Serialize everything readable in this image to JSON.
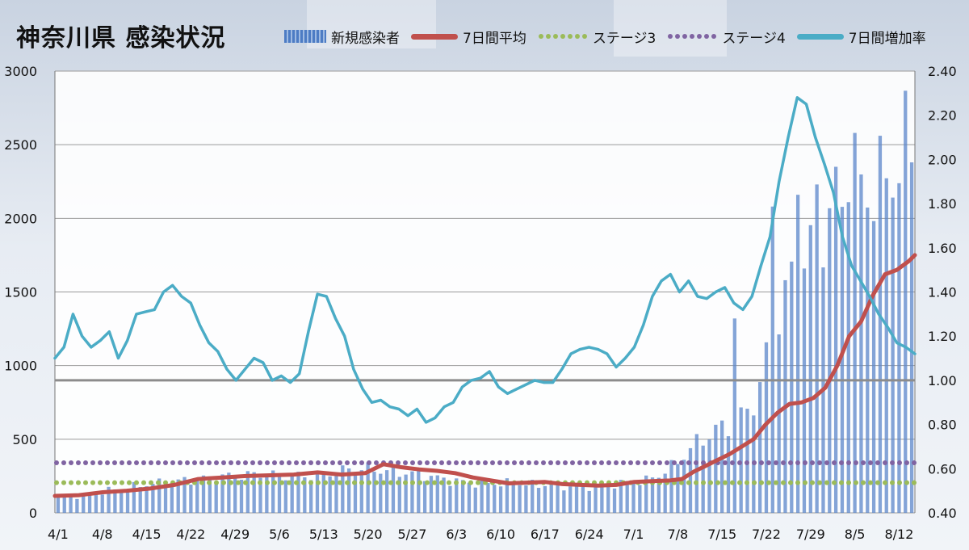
{
  "title": "神奈川県 感染状況",
  "legend": {
    "new_cases": "新規感染者",
    "avg7": "7日間平均",
    "stage3": "ステージ3",
    "stage4": "ステージ4",
    "growth7": "7日間増加率"
  },
  "colors": {
    "bars": "#5b86c9",
    "avg7": "#c0504d",
    "stage3": "#9bbb59",
    "stage4": "#8064a2",
    "growth7": "#4bacc6",
    "baseline": "#8c8c8c"
  },
  "chart_data": {
    "type": "bar",
    "title": "神奈川県 感染状況",
    "xlabel": "",
    "ylabel": "",
    "ylim": [
      0,
      3000
    ],
    "y2lim": [
      0.4,
      2.4
    ],
    "yticks": [
      "0",
      "500",
      "1000",
      "1500",
      "2000",
      "2500",
      "3000"
    ],
    "y2ticks": [
      "0.40",
      "0.60",
      "0.80",
      "1.00",
      "1.20",
      "1.40",
      "1.60",
      "1.80",
      "2.00",
      "2.20",
      "2.40"
    ],
    "xtick_labels": [
      "4/1",
      "4/8",
      "4/15",
      "4/22",
      "4/29",
      "5/6",
      "5/13",
      "5/20",
      "5/27",
      "6/3",
      "6/10",
      "6/17",
      "6/24",
      "7/1",
      "7/8",
      "7/15",
      "7/22",
      "7/29",
      "8/5",
      "8/12"
    ],
    "grid": true,
    "legend_position": "top",
    "series": [
      {
        "name": "新規感染者",
        "type": "bar",
        "axis": "left",
        "anchors": [
          [
            0,
            100
          ],
          [
            3,
            110
          ],
          [
            6,
            120
          ],
          [
            9,
            140
          ],
          [
            12,
            160
          ],
          [
            15,
            170
          ],
          [
            18,
            190
          ],
          [
            21,
            200
          ],
          [
            24,
            210
          ],
          [
            27,
            220
          ],
          [
            30,
            230
          ],
          [
            33,
            240
          ],
          [
            36,
            250
          ],
          [
            39,
            255
          ],
          [
            42,
            260
          ],
          [
            45,
            260
          ],
          [
            48,
            250
          ],
          [
            51,
            250
          ],
          [
            54,
            250
          ],
          [
            57,
            260
          ],
          [
            60,
            280
          ],
          [
            63,
            300
          ],
          [
            66,
            300
          ],
          [
            69,
            290
          ],
          [
            72,
            280
          ],
          [
            75,
            270
          ],
          [
            78,
            260
          ],
          [
            81,
            240
          ],
          [
            84,
            220
          ],
          [
            87,
            210
          ],
          [
            90,
            200
          ],
          [
            93,
            200
          ],
          [
            96,
            200
          ],
          [
            99,
            200
          ],
          [
            102,
            190
          ],
          [
            105,
            190
          ],
          [
            108,
            180
          ],
          [
            111,
            180
          ],
          [
            114,
            180
          ],
          [
            117,
            190
          ],
          [
            120,
            200
          ],
          [
            123,
            210
          ],
          [
            126,
            220
          ],
          [
            129,
            260
          ],
          [
            132,
            320
          ],
          [
            135,
            420
          ],
          [
            138,
            500
          ],
          [
            141,
            560
          ],
          [
            144,
            600
          ],
          [
            147,
            660
          ],
          [
            150,
            800
          ],
          [
            153,
            1200
          ],
          [
            156,
            1480
          ],
          [
            159,
            1700
          ],
          [
            162,
            1800
          ],
          [
            165,
            2000
          ],
          [
            168,
            2100
          ],
          [
            171,
            2150
          ],
          [
            174,
            2200
          ],
          [
            177,
            2250
          ],
          [
            180,
            2350
          ],
          [
            183,
            2550
          ]
        ],
        "spikes": [
          [
            107,
            1320
          ],
          [
            113,
            2080
          ],
          [
            117,
            2160
          ],
          [
            120,
            2230
          ],
          [
            123,
            2350
          ],
          [
            125,
            2110
          ],
          [
            126,
            2580
          ]
        ]
      },
      {
        "name": "7日間平均",
        "type": "line",
        "axis": "left",
        "points": [
          [
            0,
            115
          ],
          [
            4,
            120
          ],
          [
            8,
            140
          ],
          [
            12,
            150
          ],
          [
            16,
            165
          ],
          [
            20,
            190
          ],
          [
            24,
            230
          ],
          [
            28,
            240
          ],
          [
            32,
            250
          ],
          [
            36,
            255
          ],
          [
            40,
            260
          ],
          [
            44,
            275
          ],
          [
            48,
            260
          ],
          [
            52,
            270
          ],
          [
            55,
            330
          ],
          [
            58,
            310
          ],
          [
            61,
            295
          ],
          [
            64,
            285
          ],
          [
            67,
            270
          ],
          [
            70,
            240
          ],
          [
            73,
            220
          ],
          [
            76,
            200
          ],
          [
            79,
            205
          ],
          [
            82,
            210
          ],
          [
            85,
            195
          ],
          [
            88,
            190
          ],
          [
            91,
            185
          ],
          [
            94,
            190
          ],
          [
            97,
            210
          ],
          [
            100,
            215
          ],
          [
            103,
            220
          ],
          [
            105,
            230
          ],
          [
            107,
            280
          ],
          [
            109,
            320
          ],
          [
            111,
            360
          ],
          [
            113,
            400
          ],
          [
            115,
            450
          ],
          [
            117,
            500
          ],
          [
            119,
            600
          ],
          [
            121,
            680
          ],
          [
            123,
            740
          ],
          [
            125,
            750
          ],
          [
            127,
            780
          ],
          [
            129,
            850
          ],
          [
            131,
            1000
          ],
          [
            133,
            1200
          ],
          [
            135,
            1300
          ],
          [
            137,
            1480
          ],
          [
            139,
            1620
          ],
          [
            141,
            1650
          ],
          [
            143,
            1710
          ],
          [
            144,
            1750
          ]
        ]
      },
      {
        "name": "ステージ3",
        "type": "line",
        "axis": "left",
        "value": 205
      },
      {
        "name": "ステージ4",
        "type": "line",
        "axis": "left",
        "value": 340
      },
      {
        "name": "7日間増加率",
        "type": "line",
        "axis": "right",
        "points": [
          [
            0,
            1.1
          ],
          [
            2,
            1.15
          ],
          [
            4,
            1.3
          ],
          [
            6,
            1.2
          ],
          [
            8,
            1.15
          ],
          [
            10,
            1.18
          ],
          [
            12,
            1.22
          ],
          [
            14,
            1.1
          ],
          [
            16,
            1.18
          ],
          [
            18,
            1.3
          ],
          [
            20,
            1.31
          ],
          [
            22,
            1.32
          ],
          [
            24,
            1.4
          ],
          [
            26,
            1.43
          ],
          [
            28,
            1.38
          ],
          [
            30,
            1.35
          ],
          [
            32,
            1.25
          ],
          [
            34,
            1.17
          ],
          [
            36,
            1.13
          ],
          [
            38,
            1.05
          ],
          [
            40,
            1.0
          ],
          [
            42,
            1.05
          ],
          [
            44,
            1.1
          ],
          [
            46,
            1.08
          ],
          [
            48,
            1.0
          ],
          [
            50,
            1.02
          ],
          [
            52,
            0.99
          ],
          [
            54,
            1.03
          ],
          [
            56,
            1.22
          ],
          [
            58,
            1.39
          ],
          [
            60,
            1.38
          ],
          [
            62,
            1.28
          ],
          [
            64,
            1.2
          ],
          [
            66,
            1.05
          ],
          [
            68,
            0.96
          ],
          [
            70,
            0.9
          ],
          [
            72,
            0.91
          ],
          [
            74,
            0.88
          ],
          [
            76,
            0.87
          ],
          [
            78,
            0.84
          ],
          [
            80,
            0.87
          ],
          [
            82,
            0.81
          ],
          [
            84,
            0.83
          ],
          [
            86,
            0.88
          ],
          [
            88,
            0.9
          ],
          [
            90,
            0.97
          ],
          [
            92,
            1.0
          ],
          [
            94,
            1.01
          ],
          [
            96,
            1.04
          ],
          [
            98,
            0.97
          ],
          [
            100,
            0.94
          ],
          [
            102,
            0.96
          ],
          [
            104,
            0.98
          ],
          [
            106,
            1.0
          ],
          [
            108,
            0.99
          ],
          [
            110,
            0.99
          ],
          [
            112,
            1.05
          ],
          [
            114,
            1.12
          ],
          [
            116,
            1.14
          ],
          [
            118,
            1.15
          ],
          [
            120,
            1.14
          ],
          [
            122,
            1.12
          ],
          [
            124,
            1.06
          ],
          [
            126,
            1.1
          ],
          [
            128,
            1.15
          ],
          [
            130,
            1.25
          ],
          [
            132,
            1.38
          ],
          [
            134,
            1.45
          ],
          [
            136,
            1.48
          ],
          [
            138,
            1.4
          ],
          [
            140,
            1.45
          ],
          [
            142,
            1.38
          ],
          [
            144,
            1.37
          ],
          [
            146,
            1.4
          ],
          [
            148,
            1.42
          ],
          [
            150,
            1.35
          ],
          [
            152,
            1.32
          ],
          [
            154,
            1.38
          ],
          [
            156,
            1.52
          ],
          [
            158,
            1.65
          ],
          [
            160,
            1.9
          ],
          [
            162,
            2.1
          ],
          [
            164,
            2.28
          ],
          [
            166,
            2.25
          ],
          [
            168,
            2.1
          ],
          [
            170,
            1.98
          ],
          [
            172,
            1.85
          ],
          [
            174,
            1.65
          ],
          [
            176,
            1.52
          ],
          [
            178,
            1.45
          ],
          [
            180,
            1.38
          ],
          [
            182,
            1.3
          ],
          [
            184,
            1.24
          ],
          [
            186,
            1.17
          ],
          [
            188,
            1.15
          ],
          [
            190,
            1.12
          ]
        ]
      },
      {
        "name": "",
        "type": "line",
        "axis": "right",
        "value": 1.0
      }
    ]
  }
}
